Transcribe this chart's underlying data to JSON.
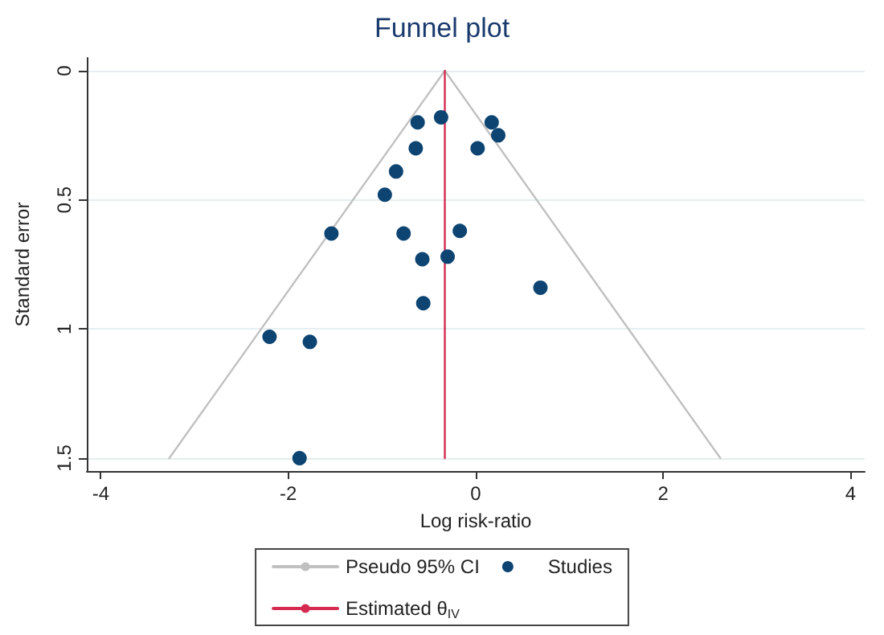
{
  "chart_data": {
    "type": "scatter",
    "title": "Funnel plot",
    "xlabel": "Log risk-ratio",
    "ylabel": "Standard error",
    "xlim": [
      -4.15,
      4.15
    ],
    "xticks": [
      -4,
      -2,
      0,
      2,
      4
    ],
    "ylim": [
      1.55,
      -0.05
    ],
    "yticks": [
      0,
      0.5,
      1,
      1.5
    ],
    "grid": "y",
    "legend": "bottom",
    "series": [
      {
        "name": "Pseudo 95% CI",
        "type": "line",
        "color": "#c0c0c0",
        "marker": "none",
        "line_style": "solid",
        "x": [
          -3.27,
          -0.33,
          2.61
        ],
        "values": [
          1.5,
          0,
          1.5
        ]
      },
      {
        "name": "Studies",
        "color": "#0d4472",
        "marker": "circle",
        "x": [
          -0.37,
          -0.62,
          0.17,
          0.24,
          -0.64,
          0.02,
          -0.85,
          -0.97,
          -1.54,
          -0.77,
          -0.17,
          -0.57,
          -0.3,
          0.69,
          -0.56,
          -2.2,
          -1.77,
          -1.88
        ],
        "values": [
          0.18,
          0.2,
          0.2,
          0.25,
          0.3,
          0.3,
          0.39,
          0.48,
          0.63,
          0.63,
          0.62,
          0.73,
          0.72,
          0.84,
          0.9,
          1.03,
          1.05,
          1.5
        ]
      },
      {
        "name": "Estimated θ$_{IV}$",
        "type": "line",
        "color": "#d42a50",
        "marker": "none",
        "line_style": "solid",
        "x": [
          -0.33,
          -0.33
        ],
        "values": [
          0,
          1.5
        ]
      }
    ]
  }
}
